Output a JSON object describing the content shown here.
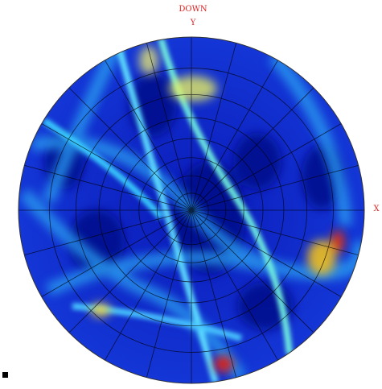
{
  "labels": {
    "direction": "DOWN",
    "y_axis": "Y",
    "x_axis": "X"
  }
}
